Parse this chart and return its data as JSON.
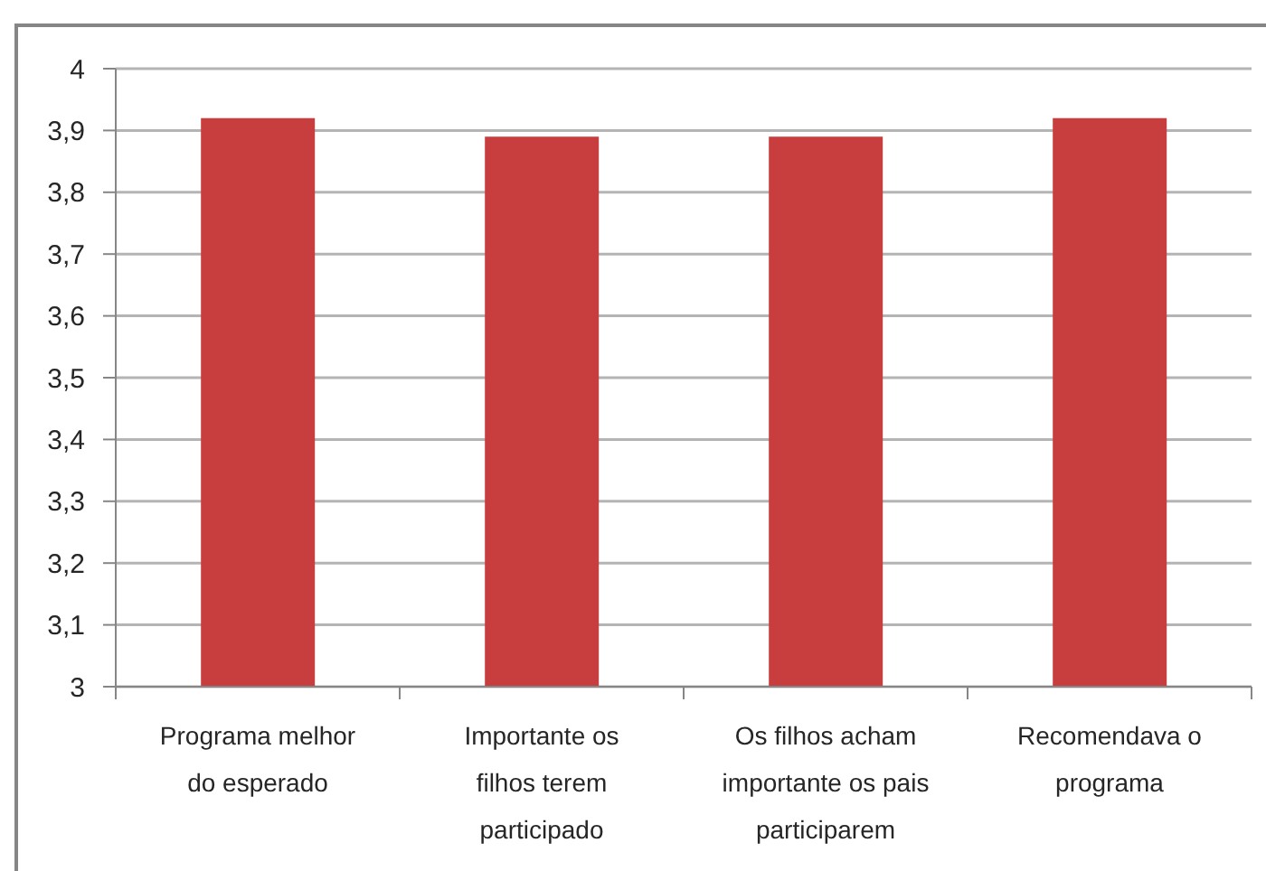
{
  "chart_data": {
    "type": "bar",
    "categories": [
      "Programa melhor do esperado",
      "Importante os filhos terem participado",
      "Os filhos acham importante os pais participarem",
      "Recomendava o programa"
    ],
    "values": [
      3.92,
      3.89,
      3.89,
      3.92
    ],
    "color": "#c83e3e",
    "ylim": [
      3,
      4
    ],
    "yticks": [
      3,
      {
        "value": 3.1,
        "label": "3,1"
      },
      {
        "value": 3.2,
        "label": "3,2"
      },
      {
        "value": 3.3,
        "label": "3,3"
      },
      {
        "value": 3.4,
        "label": "3,4"
      },
      {
        "value": 3.5,
        "label": "3,5"
      },
      {
        "value": 3.6,
        "label": "3,6"
      },
      {
        "value": 3.7,
        "label": "3,7"
      },
      {
        "value": 3.8,
        "label": "3,8"
      },
      {
        "value": 3.9,
        "label": "3,9"
      },
      4
    ],
    "grid": "y"
  }
}
